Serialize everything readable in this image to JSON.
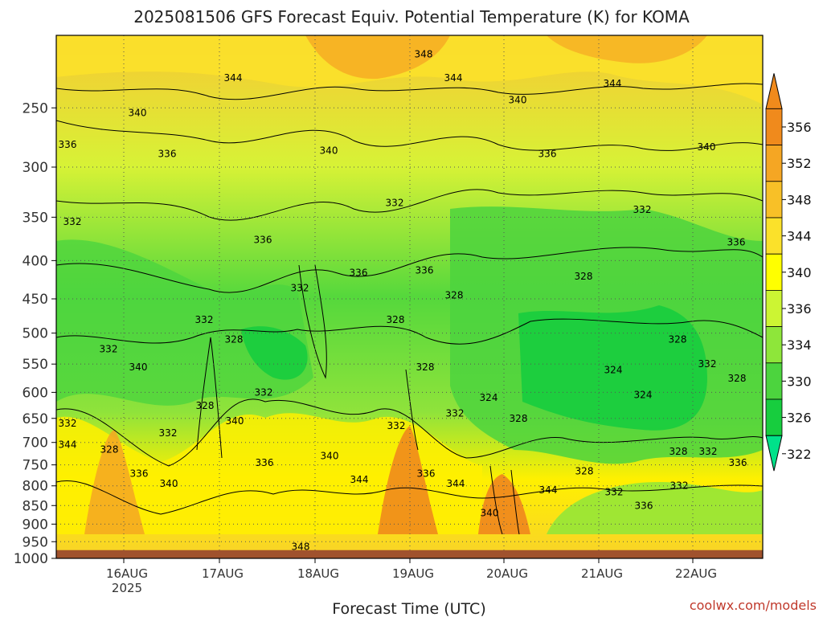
{
  "chart_data": {
    "type": "heatmap",
    "title": "2025081506 GFS Forecast Equiv. Potential Temperature (K) for KOMA",
    "xlabel": "Forecast Time (UTC)",
    "ylabel": "",
    "credit": "coolwx.com/models",
    "x_ticks": [
      {
        "label": "16AUG",
        "sub": "2025"
      },
      {
        "label": "17AUG",
        "sub": ""
      },
      {
        "label": "18AUG",
        "sub": ""
      },
      {
        "label": "19AUG",
        "sub": ""
      },
      {
        "label": "20AUG",
        "sub": ""
      },
      {
        "label": "21AUG",
        "sub": ""
      },
      {
        "label": "22AUG",
        "sub": ""
      }
    ],
    "y_ticks": [
      250,
      300,
      350,
      400,
      450,
      500,
      550,
      600,
      650,
      700,
      750,
      800,
      850,
      900,
      950,
      1000
    ],
    "y_axis": {
      "scale": "log",
      "top": 200,
      "bottom": 1000,
      "ground": 975
    },
    "colorbar": {
      "labels": [
        356,
        352,
        348,
        344,
        340,
        336,
        334,
        330,
        326,
        322
      ],
      "colors": [
        "#f08a1c",
        "#f5a623",
        "#f8c027",
        "#fbe12a",
        "#ffff00",
        "#ccf533",
        "#8ee63a",
        "#4cd43e",
        "#17cd3e",
        "#00e28a"
      ]
    },
    "contour_labels": [
      {
        "t": "348",
        "x": "19AUG",
        "p": 212
      },
      {
        "t": "344",
        "x": "17AUG",
        "p": 228
      },
      {
        "t": "344",
        "x": "19AUG",
        "p": 228
      },
      {
        "t": "344",
        "x": "21AUG",
        "p": 232
      },
      {
        "t": "340",
        "x": "16AUG",
        "p": 254
      },
      {
        "t": "340",
        "x": "20AUG",
        "p": 244
      },
      {
        "t": "340",
        "x": "22AUG",
        "p": 282
      },
      {
        "t": "336",
        "x": "15AUG",
        "p": 280
      },
      {
        "t": "336",
        "x": "16AUG",
        "p": 288
      },
      {
        "t": "340",
        "x": "18AUG",
        "p": 285
      },
      {
        "t": "336",
        "x": "20AUG",
        "p": 288
      },
      {
        "t": "332",
        "x": "19AUG",
        "p": 335
      },
      {
        "t": "332",
        "x": "21AUG",
        "p": 342
      },
      {
        "t": "332",
        "x": "15AUG",
        "p": 355
      },
      {
        "t": "336",
        "x": "17AUG",
        "p": 375
      },
      {
        "t": "336",
        "x": "22AUG",
        "p": 378
      },
      {
        "t": "336",
        "x": "18AUG",
        "p": 415
      },
      {
        "t": "336",
        "x": "19AUG",
        "p": 412
      },
      {
        "t": "328",
        "x": "21AUG",
        "p": 420
      },
      {
        "t": "332",
        "x": "18AUG",
        "p": 435
      },
      {
        "t": "328",
        "x": "19AUG",
        "p": 445
      },
      {
        "t": "332",
        "x": "17AUG",
        "p": 480
      },
      {
        "t": "328",
        "x": "19AUG",
        "p": 480
      },
      {
        "t": "328",
        "x": "17AUG",
        "p": 510
      },
      {
        "t": "332",
        "x": "16AUG",
        "p": 525
      },
      {
        "t": "328",
        "x": "22AUG",
        "p": 510
      },
      {
        "t": "340",
        "x": "16AUG",
        "p": 555
      },
      {
        "t": "328",
        "x": "19AUG",
        "p": 555
      },
      {
        "t": "324",
        "x": "21AUG",
        "p": 560
      },
      {
        "t": "332",
        "x": "22AUG",
        "p": 550
      },
      {
        "t": "328",
        "x": "22AUG",
        "p": 575
      },
      {
        "t": "332",
        "x": "17AUG",
        "p": 600
      },
      {
        "t": "324",
        "x": "20AUG",
        "p": 610
      },
      {
        "t": "324",
        "x": "21AUG",
        "p": 605
      },
      {
        "t": "328",
        "x": "17AUG",
        "p": 625
      },
      {
        "t": "340",
        "x": "17AUG",
        "p": 655
      },
      {
        "t": "328",
        "x": "20AUG",
        "p": 650
      },
      {
        "t": "332",
        "x": "19AUG",
        "p": 640
      },
      {
        "t": "332",
        "x": "19AUG",
        "p": 665
      },
      {
        "t": "332",
        "x": "15AUG",
        "p": 660
      },
      {
        "t": "332",
        "x": "16AUG",
        "p": 680
      },
      {
        "t": "344",
        "x": "15AUG",
        "p": 705
      },
      {
        "t": "328",
        "x": "16AUG",
        "p": 715
      },
      {
        "t": "328",
        "x": "22AUG",
        "p": 720
      },
      {
        "t": "332",
        "x": "22AUG",
        "p": 720
      },
      {
        "t": "340",
        "x": "18AUG",
        "p": 730
      },
      {
        "t": "336",
        "x": "17AUG",
        "p": 745
      },
      {
        "t": "336",
        "x": "22AUG",
        "p": 745
      },
      {
        "t": "336",
        "x": "16AUG",
        "p": 770
      },
      {
        "t": "328",
        "x": "21AUG",
        "p": 765
      },
      {
        "t": "336",
        "x": "19AUG",
        "p": 770
      },
      {
        "t": "344",
        "x": "18AUG",
        "p": 785
      },
      {
        "t": "340",
        "x": "16AUG",
        "p": 795
      },
      {
        "t": "344",
        "x": "19AUG",
        "p": 795
      },
      {
        "t": "344",
        "x": "20AUG",
        "p": 810
      },
      {
        "t": "332",
        "x": "21AUG",
        "p": 815
      },
      {
        "t": "332",
        "x": "22AUG",
        "p": 800
      },
      {
        "t": "336",
        "x": "21AUG",
        "p": 850
      },
      {
        "t": "340",
        "x": "20AUG",
        "p": 870
      },
      {
        "t": "348",
        "x": "18AUG",
        "p": 965
      }
    ]
  }
}
